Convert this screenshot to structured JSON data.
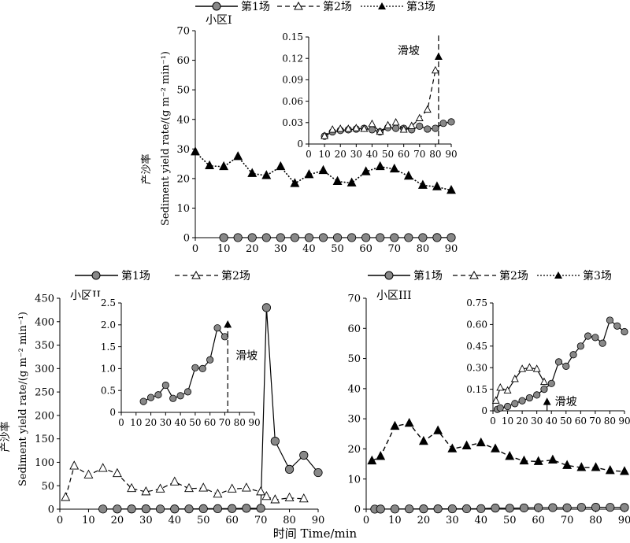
{
  "xlabel": "时间 Time/min",
  "ylabel_cn": "产沙率",
  "ylabel_en": "Sediment yield rate/(g m⁻² min⁻¹)",
  "legend_top": [
    "第1场",
    "第2场",
    "第3场"
  ],
  "legend_left": [
    "第1场",
    "第2场"
  ],
  "legend_right": [
    "第1场",
    "第2场",
    "第3场"
  ],
  "chart_data": [
    {
      "id": "plot1",
      "type": "line",
      "title": "小区I",
      "xlabel": "",
      "ylabel": "产沙率 Sediment yield rate/(g m⁻² min⁻¹)",
      "xlim": [
        0,
        90
      ],
      "ylim": [
        0,
        70
      ],
      "xticks": [
        0,
        10,
        20,
        30,
        40,
        50,
        60,
        70,
        80,
        90
      ],
      "yticks": [
        0,
        10,
        20,
        30,
        40,
        50,
        60,
        70
      ],
      "series": [
        {
          "name": "第1场",
          "style": "solid-circle",
          "x": [
            10,
            15,
            20,
            25,
            30,
            35,
            40,
            45,
            50,
            55,
            60,
            65,
            70,
            75,
            80,
            85,
            90
          ],
          "y": [
            0.01,
            0.02,
            0.02,
            0.02,
            0.02,
            0.02,
            0.02,
            0.02,
            0.02,
            0.02,
            0.02,
            0.02,
            0.02,
            0.02,
            0.02,
            0.03,
            0.03
          ]
        },
        {
          "name": "第3场",
          "style": "dotted-filled-triangle",
          "x": [
            0,
            5,
            10,
            15,
            20,
            25,
            30,
            35,
            40,
            45,
            50,
            55,
            60,
            65,
            70,
            75,
            80,
            85,
            90
          ],
          "y": [
            29,
            24.3,
            24,
            27.4,
            21.7,
            21,
            24,
            18.3,
            21.3,
            22.7,
            19,
            18.5,
            22.3,
            24,
            23.2,
            20.8,
            17.7,
            17.2,
            16
          ]
        }
      ],
      "annotations": []
    },
    {
      "id": "inset1",
      "type": "line",
      "title": "",
      "xlim": [
        0,
        90
      ],
      "ylim": [
        0,
        0.15
      ],
      "xticks": [
        0,
        10,
        20,
        30,
        40,
        50,
        60,
        70,
        80,
        90
      ],
      "yticks": [
        "0",
        "0.03",
        "0.06",
        "0.09",
        "0.12",
        "0.15"
      ],
      "series": [
        {
          "name": "第1场",
          "style": "solid-circle",
          "x": [
            10,
            15,
            20,
            25,
            30,
            35,
            40,
            45,
            50,
            55,
            60,
            65,
            70,
            75,
            80,
            85,
            90
          ],
          "y": [
            0.011,
            0.017,
            0.019,
            0.02,
            0.021,
            0.022,
            0.02,
            0.017,
            0.023,
            0.022,
            0.022,
            0.02,
            0.025,
            0.021,
            0.022,
            0.029,
            0.031
          ]
        },
        {
          "name": "第2场",
          "style": "dashed-open-triangle",
          "x": [
            10,
            15,
            20,
            25,
            30,
            35,
            40,
            45,
            50,
            55,
            60,
            65,
            70,
            75,
            80
          ],
          "y": [
            0.011,
            0.02,
            0.021,
            0.021,
            0.022,
            0.021,
            0.028,
            0.017,
            0.026,
            0.03,
            0.02,
            0.025,
            0.036,
            0.048,
            0.103
          ]
        },
        {
          "name": "第3场",
          "style": "dashed-filled-triangle",
          "x": [
            82
          ],
          "y": [
            0.122
          ]
        }
      ],
      "annotations": [
        {
          "text": "滑坡",
          "x": 82
        }
      ]
    },
    {
      "id": "plot2",
      "type": "line",
      "title": "小区II",
      "xlim": [
        0,
        90
      ],
      "ylim": [
        0,
        450
      ],
      "xticks": [
        0,
        10,
        20,
        30,
        40,
        50,
        60,
        70,
        80,
        90
      ],
      "yticks": [
        0,
        50,
        100,
        150,
        200,
        250,
        300,
        350,
        400,
        450
      ],
      "series": [
        {
          "name": "第1场",
          "style": "solid-circle",
          "x": [
            15,
            20,
            25,
            30,
            35,
            40,
            45,
            50,
            55,
            60,
            65,
            70,
            72,
            75,
            80,
            85,
            90
          ],
          "y": [
            0.3,
            0.35,
            0.4,
            0.6,
            0.3,
            0.4,
            0.5,
            1.0,
            1.0,
            1.2,
            1.9,
            1.75,
            430,
            145,
            85,
            115,
            78
          ]
        },
        {
          "name": "第2场",
          "style": "dashed-open-triangle",
          "x": [
            2,
            5,
            10,
            15,
            20,
            25,
            30,
            35,
            40,
            45,
            50,
            55,
            60,
            65,
            70,
            72,
            75,
            80,
            85
          ],
          "y": [
            25,
            92,
            73,
            87,
            76,
            44,
            37,
            43,
            58,
            44,
            45,
            32,
            43,
            45,
            37,
            27,
            20,
            24,
            22
          ]
        }
      ],
      "annotations": []
    },
    {
      "id": "inset2",
      "type": "line",
      "title": "",
      "xlim": [
        0,
        90
      ],
      "ylim": [
        0,
        2.5
      ],
      "xticks": [
        0,
        10,
        20,
        30,
        40,
        50,
        60,
        70,
        80,
        90
      ],
      "yticks": [
        "0",
        "0.5",
        "1.0",
        "1.5",
        "2.0",
        "2.5"
      ],
      "series": [
        {
          "name": "第1场",
          "style": "solid-circle",
          "x": [
            15,
            20,
            25,
            30,
            35,
            40,
            45,
            50,
            55,
            60,
            65,
            70
          ],
          "y": [
            0.25,
            0.34,
            0.4,
            0.62,
            0.32,
            0.38,
            0.47,
            1.02,
            1.0,
            1.2,
            1.93,
            1.73
          ]
        },
        {
          "name": "第2场",
          "style": "dashed-filled-triangle",
          "x": [
            72
          ],
          "y": [
            2.0
          ]
        }
      ],
      "annotations": [
        {
          "text": "滑坡",
          "x": 72
        }
      ]
    },
    {
      "id": "plot3",
      "type": "line",
      "title": "小区III",
      "xlim": [
        0,
        90
      ],
      "ylim": [
        0,
        70
      ],
      "xticks": [
        0,
        10,
        20,
        30,
        40,
        50,
        60,
        70,
        80,
        90
      ],
      "yticks": [
        0,
        10,
        20,
        30,
        40,
        50,
        60,
        70
      ],
      "series": [
        {
          "name": "第1场",
          "style": "solid-circle",
          "x": [
            3,
            5,
            10,
            15,
            20,
            25,
            30,
            35,
            40,
            45,
            50,
            55,
            60,
            65,
            70,
            75,
            80,
            85,
            90
          ],
          "y": [
            0.02,
            0.03,
            0.05,
            0.08,
            0.1,
            0.1,
            0.12,
            0.15,
            0.18,
            0.35,
            0.3,
            0.4,
            0.5,
            0.5,
            0.47,
            0.6,
            0.62,
            0.6,
            0.55
          ]
        },
        {
          "name": "第3场",
          "style": "dashed-filled-triangle",
          "x": [
            2,
            5,
            10,
            15,
            20,
            25,
            30,
            35,
            40,
            45,
            50,
            55,
            60,
            65,
            70,
            75,
            80,
            85,
            90
          ],
          "y": [
            16,
            17.5,
            27.5,
            28.5,
            22.5,
            26,
            20,
            21,
            22,
            20,
            17.5,
            16,
            15.8,
            16.3,
            14.5,
            13.8,
            13.8,
            12.8,
            12.5
          ]
        }
      ],
      "annotations": []
    },
    {
      "id": "inset3",
      "type": "line",
      "title": "",
      "xlim": [
        0,
        90
      ],
      "ylim": [
        0,
        0.75
      ],
      "xticks": [
        0,
        10,
        20,
        30,
        40,
        50,
        60,
        70,
        80,
        90
      ],
      "yticks": [
        "0",
        "0.15",
        "0.30",
        "0.45",
        "0.60",
        "0.75"
      ],
      "series": [
        {
          "name": "第1场",
          "style": "solid-circle",
          "x": [
            3,
            5,
            10,
            15,
            20,
            25,
            30,
            35,
            40,
            45,
            50,
            55,
            60,
            65,
            70,
            75,
            80,
            85,
            90
          ],
          "y": [
            0.01,
            0.02,
            0.03,
            0.05,
            0.07,
            0.09,
            0.11,
            0.15,
            0.19,
            0.34,
            0.31,
            0.39,
            0.45,
            0.52,
            0.51,
            0.47,
            0.63,
            0.59,
            0.55
          ]
        },
        {
          "name": "第2场",
          "style": "solid-open-triangle",
          "x": [
            2,
            5,
            10,
            15,
            20,
            25,
            30,
            35
          ],
          "y": [
            0.07,
            0.16,
            0.14,
            0.22,
            0.29,
            0.3,
            0.29,
            0.2
          ]
        },
        {
          "name": "第3场",
          "style": "filled-triangle",
          "x": [
            37
          ],
          "y": [
            0.06
          ]
        }
      ],
      "annotations": [
        {
          "text": "滑坡",
          "x": 37
        }
      ]
    }
  ]
}
